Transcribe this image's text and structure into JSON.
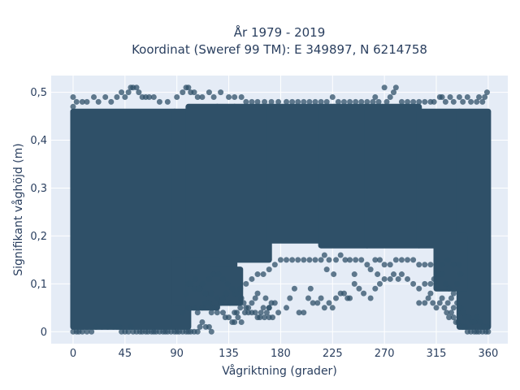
{
  "chart_data": {
    "type": "scatter",
    "title_line1": "År 1979 - 2019",
    "title_line2": "Koordinat (Sweref 99 TM): E 349897, N 6214758",
    "xlabel": "Vågriktning (grader)",
    "ylabel": "Signifikant våghöjd (m)",
    "xlim": [
      -19,
      377
    ],
    "ylim": [
      -0.025,
      0.535
    ],
    "x_ticks": [
      {
        "value": 0,
        "label": "0"
      },
      {
        "value": 45,
        "label": "45"
      },
      {
        "value": 90,
        "label": "90"
      },
      {
        "value": 135,
        "label": "135"
      },
      {
        "value": 180,
        "label": "180"
      },
      {
        "value": 225,
        "label": "225"
      },
      {
        "value": 270,
        "label": "270"
      },
      {
        "value": 315,
        "label": "315"
      },
      {
        "value": 360,
        "label": "360"
      }
    ],
    "y_ticks": [
      {
        "value": 0,
        "label": "0"
      },
      {
        "value": 0.1,
        "label": "0,1"
      },
      {
        "value": 0.2,
        "label": "0,2"
      },
      {
        "value": 0.3,
        "label": "0,3"
      },
      {
        "value": 0.4,
        "label": "0,4"
      },
      {
        "value": 0.5,
        "label": "0,5"
      }
    ],
    "grid": true,
    "colors": {
      "background": "#e5ecf6",
      "grid": "#ffffff",
      "marker": "#2f5068"
    },
    "points": [
      [
        0,
        0.47
      ],
      [
        0,
        0.49
      ],
      [
        3,
        0.48
      ],
      [
        8,
        0.48
      ],
      [
        12,
        0.48
      ],
      [
        18,
        0.49
      ],
      [
        22,
        0.48
      ],
      [
        28,
        0.49
      ],
      [
        33,
        0.48
      ],
      [
        38,
        0.49
      ],
      [
        42,
        0.5
      ],
      [
        45,
        0.49
      ],
      [
        48,
        0.5
      ],
      [
        50,
        0.51
      ],
      [
        52,
        0.51
      ],
      [
        55,
        0.51
      ],
      [
        57,
        0.5
      ],
      [
        60,
        0.49
      ],
      [
        63,
        0.49
      ],
      [
        66,
        0.49
      ],
      [
        70,
        0.49
      ],
      [
        75,
        0.48
      ],
      [
        82,
        0.48
      ],
      [
        90,
        0.49
      ],
      [
        95,
        0.5
      ],
      [
        98,
        0.51
      ],
      [
        100,
        0.51
      ],
      [
        102,
        0.5
      ],
      [
        105,
        0.5
      ],
      [
        108,
        0.49
      ],
      [
        112,
        0.49
      ],
      [
        118,
        0.5
      ],
      [
        122,
        0.49
      ],
      [
        128,
        0.5
      ],
      [
        135,
        0.49
      ],
      [
        140,
        0.49
      ],
      [
        146,
        0.49
      ],
      [
        150,
        0.48
      ],
      [
        155,
        0.48
      ],
      [
        160,
        0.48
      ],
      [
        166,
        0.48
      ],
      [
        172,
        0.48
      ],
      [
        178,
        0.48
      ],
      [
        185,
        0.48
      ],
      [
        190,
        0.48
      ],
      [
        195,
        0.48
      ],
      [
        200,
        0.48
      ],
      [
        205,
        0.48
      ],
      [
        210,
        0.48
      ],
      [
        215,
        0.48
      ],
      [
        220,
        0.48
      ],
      [
        225,
        0.49
      ],
      [
        230,
        0.48
      ],
      [
        235,
        0.48
      ],
      [
        240,
        0.48
      ],
      [
        245,
        0.48
      ],
      [
        250,
        0.48
      ],
      [
        255,
        0.48
      ],
      [
        260,
        0.48
      ],
      [
        262,
        0.49
      ],
      [
        265,
        0.48
      ],
      [
        270,
        0.51
      ],
      [
        272,
        0.48
      ],
      [
        275,
        0.49
      ],
      [
        278,
        0.5
      ],
      [
        280,
        0.51
      ],
      [
        285,
        0.48
      ],
      [
        290,
        0.48
      ],
      [
        295,
        0.48
      ],
      [
        300,
        0.48
      ],
      [
        305,
        0.48
      ],
      [
        310,
        0.48
      ],
      [
        313,
        0.48
      ],
      [
        318,
        0.49
      ],
      [
        320,
        0.49
      ],
      [
        323,
        0.48
      ],
      [
        327,
        0.49
      ],
      [
        330,
        0.48
      ],
      [
        335,
        0.49
      ],
      [
        338,
        0.48
      ],
      [
        342,
        0.49
      ],
      [
        345,
        0.48
      ],
      [
        350,
        0.48
      ],
      [
        352,
        0.49
      ],
      [
        355,
        0.48
      ],
      [
        357,
        0.49
      ],
      [
        359,
        0.5
      ],
      [
        0,
        0.0
      ],
      [
        3,
        0.0
      ],
      [
        5,
        0.0
      ],
      [
        8,
        0.0
      ],
      [
        12,
        0.0
      ],
      [
        16,
        0.0
      ],
      [
        20,
        0.01
      ],
      [
        25,
        0.01
      ],
      [
        30,
        0.01
      ],
      [
        35,
        0.01
      ],
      [
        38,
        0.01
      ],
      [
        40,
        0.01
      ],
      [
        42,
        0.0
      ],
      [
        45,
        0.0
      ],
      [
        48,
        0.0
      ],
      [
        50,
        0.01
      ],
      [
        52,
        0.0
      ],
      [
        55,
        0.0
      ],
      [
        58,
        0.0
      ],
      [
        60,
        0.0
      ],
      [
        63,
        0.0
      ],
      [
        65,
        0.0
      ],
      [
        68,
        0.0
      ],
      [
        70,
        0.0
      ],
      [
        72,
        0.0
      ],
      [
        75,
        0.0
      ],
      [
        78,
        0.0
      ],
      [
        80,
        0.0
      ],
      [
        82,
        0.0
      ],
      [
        85,
        0.0
      ],
      [
        88,
        0.0
      ],
      [
        90,
        0.0
      ],
      [
        92,
        0.0
      ],
      [
        95,
        0.0
      ],
      [
        98,
        0.0
      ],
      [
        100,
        0.0
      ],
      [
        102,
        0.0
      ],
      [
        105,
        0.0
      ],
      [
        108,
        0.0
      ],
      [
        110,
        0.01
      ],
      [
        112,
        0.02
      ],
      [
        115,
        0.01
      ],
      [
        118,
        0.01
      ],
      [
        120,
        0.0
      ],
      [
        95,
        0.04
      ],
      [
        100,
        0.05
      ],
      [
        105,
        0.05
      ],
      [
        108,
        0.04
      ],
      [
        112,
        0.05
      ],
      [
        115,
        0.06
      ],
      [
        118,
        0.06
      ],
      [
        120,
        0.08
      ],
      [
        122,
        0.05
      ],
      [
        125,
        0.07
      ],
      [
        128,
        0.06
      ],
      [
        130,
        0.04
      ],
      [
        132,
        0.03
      ],
      [
        135,
        0.03
      ],
      [
        138,
        0.02
      ],
      [
        140,
        0.02
      ],
      [
        142,
        0.04
      ],
      [
        145,
        0.05
      ],
      [
        148,
        0.06
      ],
      [
        150,
        0.05
      ],
      [
        152,
        0.04
      ],
      [
        155,
        0.04
      ],
      [
        158,
        0.04
      ],
      [
        160,
        0.03
      ],
      [
        162,
        0.03
      ],
      [
        165,
        0.05
      ],
      [
        167,
        0.07
      ],
      [
        170,
        0.05
      ],
      [
        140,
        0.08
      ],
      [
        145,
        0.09
      ],
      [
        150,
        0.1
      ],
      [
        155,
        0.11
      ],
      [
        160,
        0.12
      ],
      [
        165,
        0.12
      ],
      [
        170,
        0.13
      ],
      [
        175,
        0.14
      ],
      [
        180,
        0.15
      ],
      [
        185,
        0.15
      ],
      [
        190,
        0.15
      ],
      [
        195,
        0.15
      ],
      [
        200,
        0.15
      ],
      [
        205,
        0.15
      ],
      [
        210,
        0.15
      ],
      [
        215,
        0.15
      ],
      [
        218,
        0.16
      ],
      [
        222,
        0.15
      ],
      [
        228,
        0.15
      ],
      [
        232,
        0.16
      ],
      [
        236,
        0.15
      ],
      [
        240,
        0.15
      ],
      [
        245,
        0.15
      ],
      [
        250,
        0.15
      ],
      [
        255,
        0.14
      ],
      [
        258,
        0.13
      ],
      [
        262,
        0.15
      ],
      [
        266,
        0.15
      ],
      [
        270,
        0.14
      ],
      [
        275,
        0.14
      ],
      [
        280,
        0.15
      ],
      [
        285,
        0.15
      ],
      [
        290,
        0.15
      ],
      [
        295,
        0.15
      ],
      [
        300,
        0.14
      ],
      [
        305,
        0.14
      ],
      [
        310,
        0.14
      ],
      [
        315,
        0.15
      ],
      [
        320,
        0.14
      ],
      [
        325,
        0.15
      ],
      [
        330,
        0.14
      ],
      [
        335,
        0.14
      ],
      [
        125,
        0.04
      ],
      [
        128,
        0.06
      ],
      [
        130,
        0.07
      ],
      [
        133,
        0.08
      ],
      [
        136,
        0.06
      ],
      [
        140,
        0.04
      ],
      [
        143,
        0.03
      ],
      [
        146,
        0.02
      ],
      [
        149,
        0.04
      ],
      [
        152,
        0.05
      ],
      [
        155,
        0.06
      ],
      [
        158,
        0.07
      ],
      [
        160,
        0.08
      ],
      [
        163,
        0.04
      ],
      [
        166,
        0.03
      ],
      [
        168,
        0.04
      ],
      [
        170,
        0.05
      ],
      [
        173,
        0.03
      ],
      [
        120,
        0.04
      ],
      [
        115,
        0.08
      ],
      [
        110,
        0.09
      ],
      [
        105,
        0.09
      ],
      [
        100,
        0.1
      ],
      [
        98,
        0.08
      ],
      [
        102,
        0.1
      ],
      [
        106,
        0.11
      ],
      [
        109,
        0.09
      ],
      [
        112,
        0.1
      ],
      [
        118,
        0.11
      ],
      [
        122,
        0.12
      ],
      [
        126,
        0.12
      ],
      [
        130,
        0.11
      ],
      [
        134,
        0.1
      ],
      [
        138,
        0.09
      ],
      [
        142,
        0.08
      ],
      [
        146,
        0.07
      ],
      [
        170,
        0.03
      ],
      [
        172,
        0.06
      ],
      [
        175,
        0.06
      ],
      [
        178,
        0.04
      ],
      [
        185,
        0.05
      ],
      [
        188,
        0.07
      ],
      [
        192,
        0.09
      ],
      [
        196,
        0.04
      ],
      [
        200,
        0.04
      ],
      [
        204,
        0.07
      ],
      [
        208,
        0.06
      ],
      [
        212,
        0.06
      ],
      [
        215,
        0.07
      ],
      [
        218,
        0.05
      ],
      [
        222,
        0.06
      ],
      [
        225,
        0.05
      ],
      [
        228,
        0.07
      ],
      [
        232,
        0.08
      ],
      [
        235,
        0.08
      ],
      [
        238,
        0.07
      ],
      [
        240,
        0.07
      ],
      [
        244,
        0.1
      ],
      [
        248,
        0.09
      ],
      [
        252,
        0.08
      ],
      [
        258,
        0.07
      ],
      [
        262,
        0.09
      ],
      [
        266,
        0.1
      ],
      [
        270,
        0.11
      ],
      [
        275,
        0.11
      ],
      [
        278,
        0.12
      ],
      [
        282,
        0.11
      ],
      [
        285,
        0.12
      ],
      [
        290,
        0.11
      ],
      [
        295,
        0.1
      ],
      [
        300,
        0.09
      ],
      [
        305,
        0.1
      ],
      [
        310,
        0.1
      ],
      [
        313,
        0.11
      ],
      [
        316,
        0.12
      ],
      [
        320,
        0.12
      ],
      [
        323,
        0.1
      ],
      [
        326,
        0.09
      ],
      [
        330,
        0.08
      ],
      [
        333,
        0.1
      ],
      [
        336,
        0.12
      ],
      [
        206,
        0.09
      ],
      [
        220,
        0.13
      ],
      [
        226,
        0.12
      ],
      [
        244,
        0.12
      ],
      [
        264,
        0.12
      ],
      [
        300,
        0.06
      ],
      [
        305,
        0.06
      ],
      [
        308,
        0.07
      ],
      [
        310,
        0.08
      ],
      [
        312,
        0.06
      ],
      [
        315,
        0.05
      ],
      [
        318,
        0.06
      ],
      [
        320,
        0.07
      ],
      [
        322,
        0.05
      ],
      [
        324,
        0.04
      ],
      [
        326,
        0.03
      ],
      [
        328,
        0.04
      ],
      [
        330,
        0.03
      ],
      [
        332,
        0.02
      ],
      [
        334,
        0.02
      ],
      [
        336,
        0.04
      ],
      [
        338,
        0.01
      ],
      [
        340,
        0.01
      ],
      [
        342,
        0.0
      ],
      [
        345,
        0.0
      ],
      [
        348,
        0.0
      ],
      [
        350,
        0.0
      ],
      [
        352,
        0.0
      ],
      [
        355,
        0.0
      ],
      [
        358,
        0.0
      ],
      [
        360,
        0.0
      ],
      [
        325,
        0.06
      ],
      [
        328,
        0.07
      ],
      [
        330,
        0.05
      ],
      [
        333,
        0.06
      ],
      [
        336,
        0.05
      ],
      [
        338,
        0.04
      ],
      [
        340,
        0.03
      ],
      [
        343,
        0.03
      ],
      [
        346,
        0.02
      ],
      [
        348,
        0.02
      ],
      [
        350,
        0.03
      ],
      [
        353,
        0.02
      ],
      [
        356,
        0.01
      ],
      [
        359,
        0.01
      ]
    ],
    "dense_regions": [
      {
        "x": [
          0,
          88
        ],
        "y": [
          0.01,
          0.46
        ]
      },
      {
        "x": [
          88,
          100
        ],
        "y": [
          0.01,
          0.46
        ]
      },
      {
        "x": [
          100,
          125
        ],
        "y": [
          0.12,
          0.47
        ]
      },
      {
        "x": [
          125,
          140
        ],
        "y": [
          0.13,
          0.47
        ]
      },
      {
        "x": [
          140,
          170
        ],
        "y": [
          0.15,
          0.47
        ]
      },
      {
        "x": [
          170,
          215
        ],
        "y": [
          0.19,
          0.47
        ]
      },
      {
        "x": [
          215,
          255
        ],
        "y": [
          0.18,
          0.47
        ]
      },
      {
        "x": [
          255,
          300
        ],
        "y": [
          0.18,
          0.47
        ]
      },
      {
        "x": [
          300,
          335
        ],
        "y": [
          0.18,
          0.46
        ]
      },
      {
        "x": [
          335,
          360
        ],
        "y": [
          0.01,
          0.46
        ]
      },
      {
        "x": [
          88,
          100
        ],
        "y": [
          0.06,
          0.15
        ]
      },
      {
        "x": [
          100,
          125
        ],
        "y": [
          0.05,
          0.15
        ]
      },
      {
        "x": [
          120,
          145
        ],
        "y": [
          0.06,
          0.13
        ]
      },
      {
        "x": [
          315,
          340
        ],
        "y": [
          0.09,
          0.2
        ]
      }
    ]
  }
}
